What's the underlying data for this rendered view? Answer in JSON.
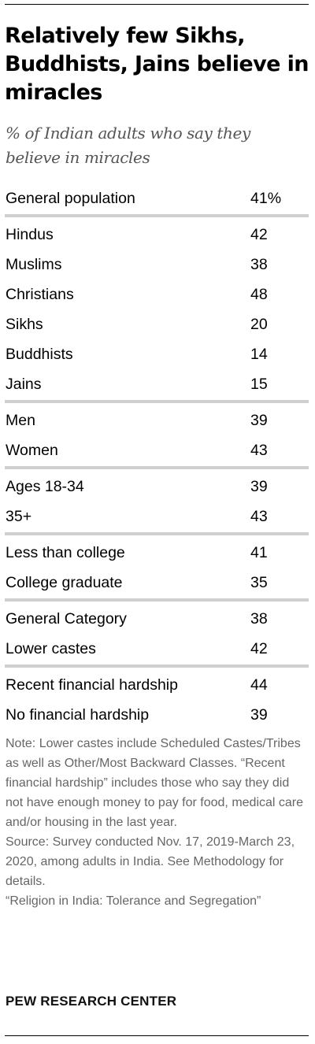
{
  "title": "Relatively few Sikhs, Buddhists, Jains believe in miracles",
  "subtitle": "% of Indian adults who say they believe in miracles",
  "chart_data": {
    "type": "table",
    "title": "Relatively few Sikhs, Buddhists, Jains believe in miracles",
    "subtitle": "% of Indian adults who say they believe in miracles",
    "groups": [
      {
        "rows": [
          {
            "label": "General population",
            "value": "41%"
          }
        ]
      },
      {
        "rows": [
          {
            "label": "Hindus",
            "value": "42"
          },
          {
            "label": "Muslims",
            "value": "38"
          },
          {
            "label": "Christians",
            "value": "48"
          },
          {
            "label": "Sikhs",
            "value": "20"
          },
          {
            "label": "Buddhists",
            "value": "14"
          },
          {
            "label": "Jains",
            "value": "15"
          }
        ]
      },
      {
        "rows": [
          {
            "label": "Men",
            "value": "39"
          },
          {
            "label": "Women",
            "value": "43"
          }
        ]
      },
      {
        "rows": [
          {
            "label": "Ages 18-34",
            "value": "39"
          },
          {
            "label": "35+",
            "value": "43"
          }
        ]
      },
      {
        "rows": [
          {
            "label": "Less than college",
            "value": "41"
          },
          {
            "label": "College graduate",
            "value": "35"
          }
        ]
      },
      {
        "rows": [
          {
            "label": "General Category",
            "value": "38"
          },
          {
            "label": "Lower castes",
            "value": "42"
          }
        ]
      },
      {
        "rows": [
          {
            "label": "Recent financial hardship",
            "value": "44"
          },
          {
            "label": "No financial hardship",
            "value": "39"
          }
        ]
      }
    ]
  },
  "notes": [
    "Note: Lower castes include Scheduled Castes/Tribes as well as Other/Most Backward Classes. “Recent financial hardship” includes those who say they did not have enough money to pay for food, medical care and/or housing in the last year.",
    "Source: Survey conducted Nov. 17, 2019-March 23, 2020, among adults in India. See Methodology for details.",
    "“Religion in India: Tolerance and Segregation”"
  ],
  "logo": "PEW RESEARCH CENTER"
}
